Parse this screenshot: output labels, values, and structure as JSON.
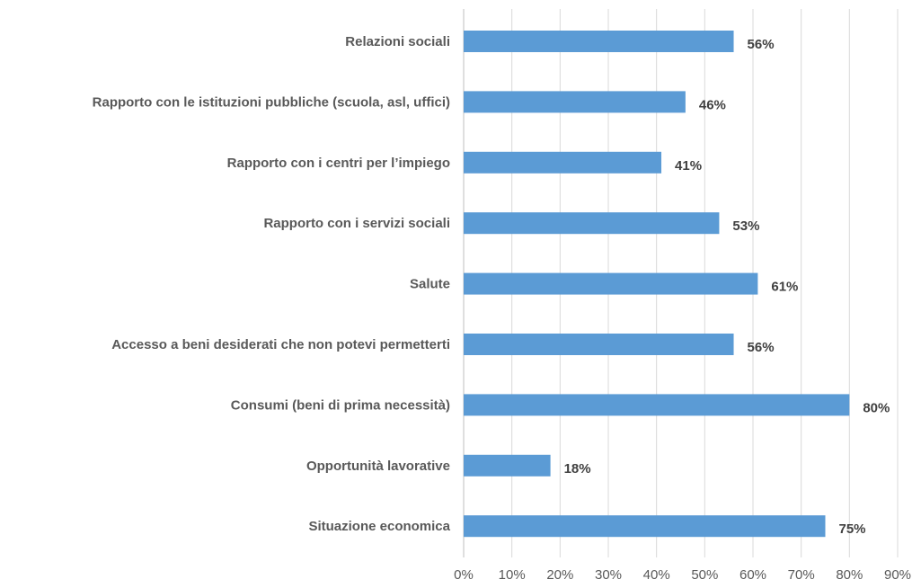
{
  "chart_data": {
    "type": "bar",
    "orientation": "horizontal",
    "categories": [
      "Relazioni sociali",
      "Rapporto con le istituzioni pubbliche (scuola, asl, uffici)",
      "Rapporto con i centri per l’impiego",
      "Rapporto con i servizi sociali",
      "Salute",
      "Accesso a beni desiderati che non potevi permetterti",
      "Consumi (beni di prima necessità)",
      "Opportunità lavorative",
      "Situazione economica"
    ],
    "values": [
      56,
      46,
      41,
      53,
      61,
      56,
      80,
      18,
      75
    ],
    "data_labels": [
      "56%",
      "46%",
      "41%",
      "53%",
      "61%",
      "56%",
      "80%",
      "18%",
      "75%"
    ],
    "xlim": [
      0,
      90
    ],
    "x_ticks": [
      0,
      10,
      20,
      30,
      40,
      50,
      60,
      70,
      80,
      90
    ],
    "x_tick_labels": [
      "0%",
      "10%",
      "20%",
      "30%",
      "40%",
      "50%",
      "60%",
      "70%",
      "80%",
      "90%"
    ],
    "grid": true,
    "legend": false,
    "bar_color": "#5b9bd5",
    "title": "",
    "xlabel": "",
    "ylabel": ""
  }
}
